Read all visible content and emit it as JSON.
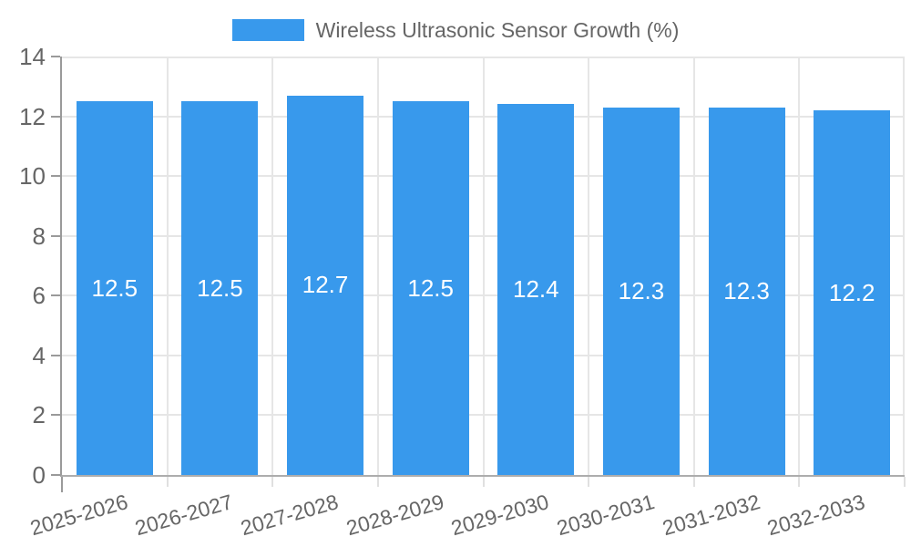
{
  "colors": {
    "bar": "#3899EC",
    "grid": "#E6E6E6",
    "axis_line_y": "#9A9A9A",
    "axis_line_x": "#ADADAD",
    "tick_light": "#E0E0E0",
    "axis_text": "#666666",
    "value_label_text": "#FFFFFF",
    "background": "#FFFFFF"
  },
  "chart_data": {
    "type": "bar",
    "title": "",
    "series_name": "Wireless Ultrasonic Sensor Growth (%)",
    "legend": [
      "Wireless Ultrasonic Sensor Growth (%)"
    ],
    "legend_position": "top-center",
    "categories": [
      "2025-2026",
      "2026-2027",
      "2027-2028",
      "2028-2029",
      "2029-2030",
      "2030-2031",
      "2031-2032",
      "2032-2033"
    ],
    "values": [
      12.5,
      12.5,
      12.7,
      12.5,
      12.4,
      12.3,
      12.3,
      12.2
    ],
    "value_labels": [
      "12.5",
      "12.5",
      "12.7",
      "12.5",
      "12.4",
      "12.3",
      "12.3",
      "12.2"
    ],
    "xlabel": "",
    "ylabel": "",
    "ylim": [
      0,
      14
    ],
    "yticks": [
      0,
      2,
      4,
      6,
      8,
      10,
      12,
      14
    ],
    "grid": true,
    "x_label_rotation_deg": -16
  }
}
